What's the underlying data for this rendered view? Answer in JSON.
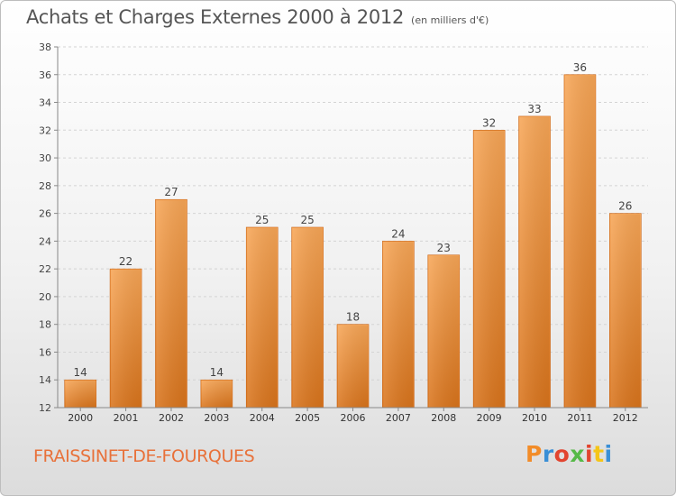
{
  "header": {
    "title": "Achats et Charges Externes 2000 à 2012",
    "unit": "(en milliers d'€)"
  },
  "footer": {
    "commune": "FRAISSINET-DE-FOURQUES",
    "logo": "Proxiti",
    "logo_colors": [
      "#f28c28",
      "#3a8fd6",
      "#e2442f",
      "#56b947",
      "#e2442f",
      "#f5c518",
      "#3a8fd6"
    ]
  },
  "chart_data": {
    "type": "bar",
    "categories": [
      "2000",
      "2001",
      "2002",
      "2003",
      "2004",
      "2005",
      "2006",
      "2007",
      "2008",
      "2009",
      "2010",
      "2011",
      "2012"
    ],
    "values": [
      14,
      22,
      27,
      14,
      25,
      25,
      18,
      24,
      23,
      32,
      33,
      36,
      26
    ],
    "ylim": [
      12,
      38
    ],
    "yticks": [
      12,
      14,
      16,
      18,
      20,
      22,
      24,
      26,
      28,
      30,
      32,
      34,
      36,
      38
    ],
    "grid": true,
    "bar_color": "#f0902f"
  }
}
